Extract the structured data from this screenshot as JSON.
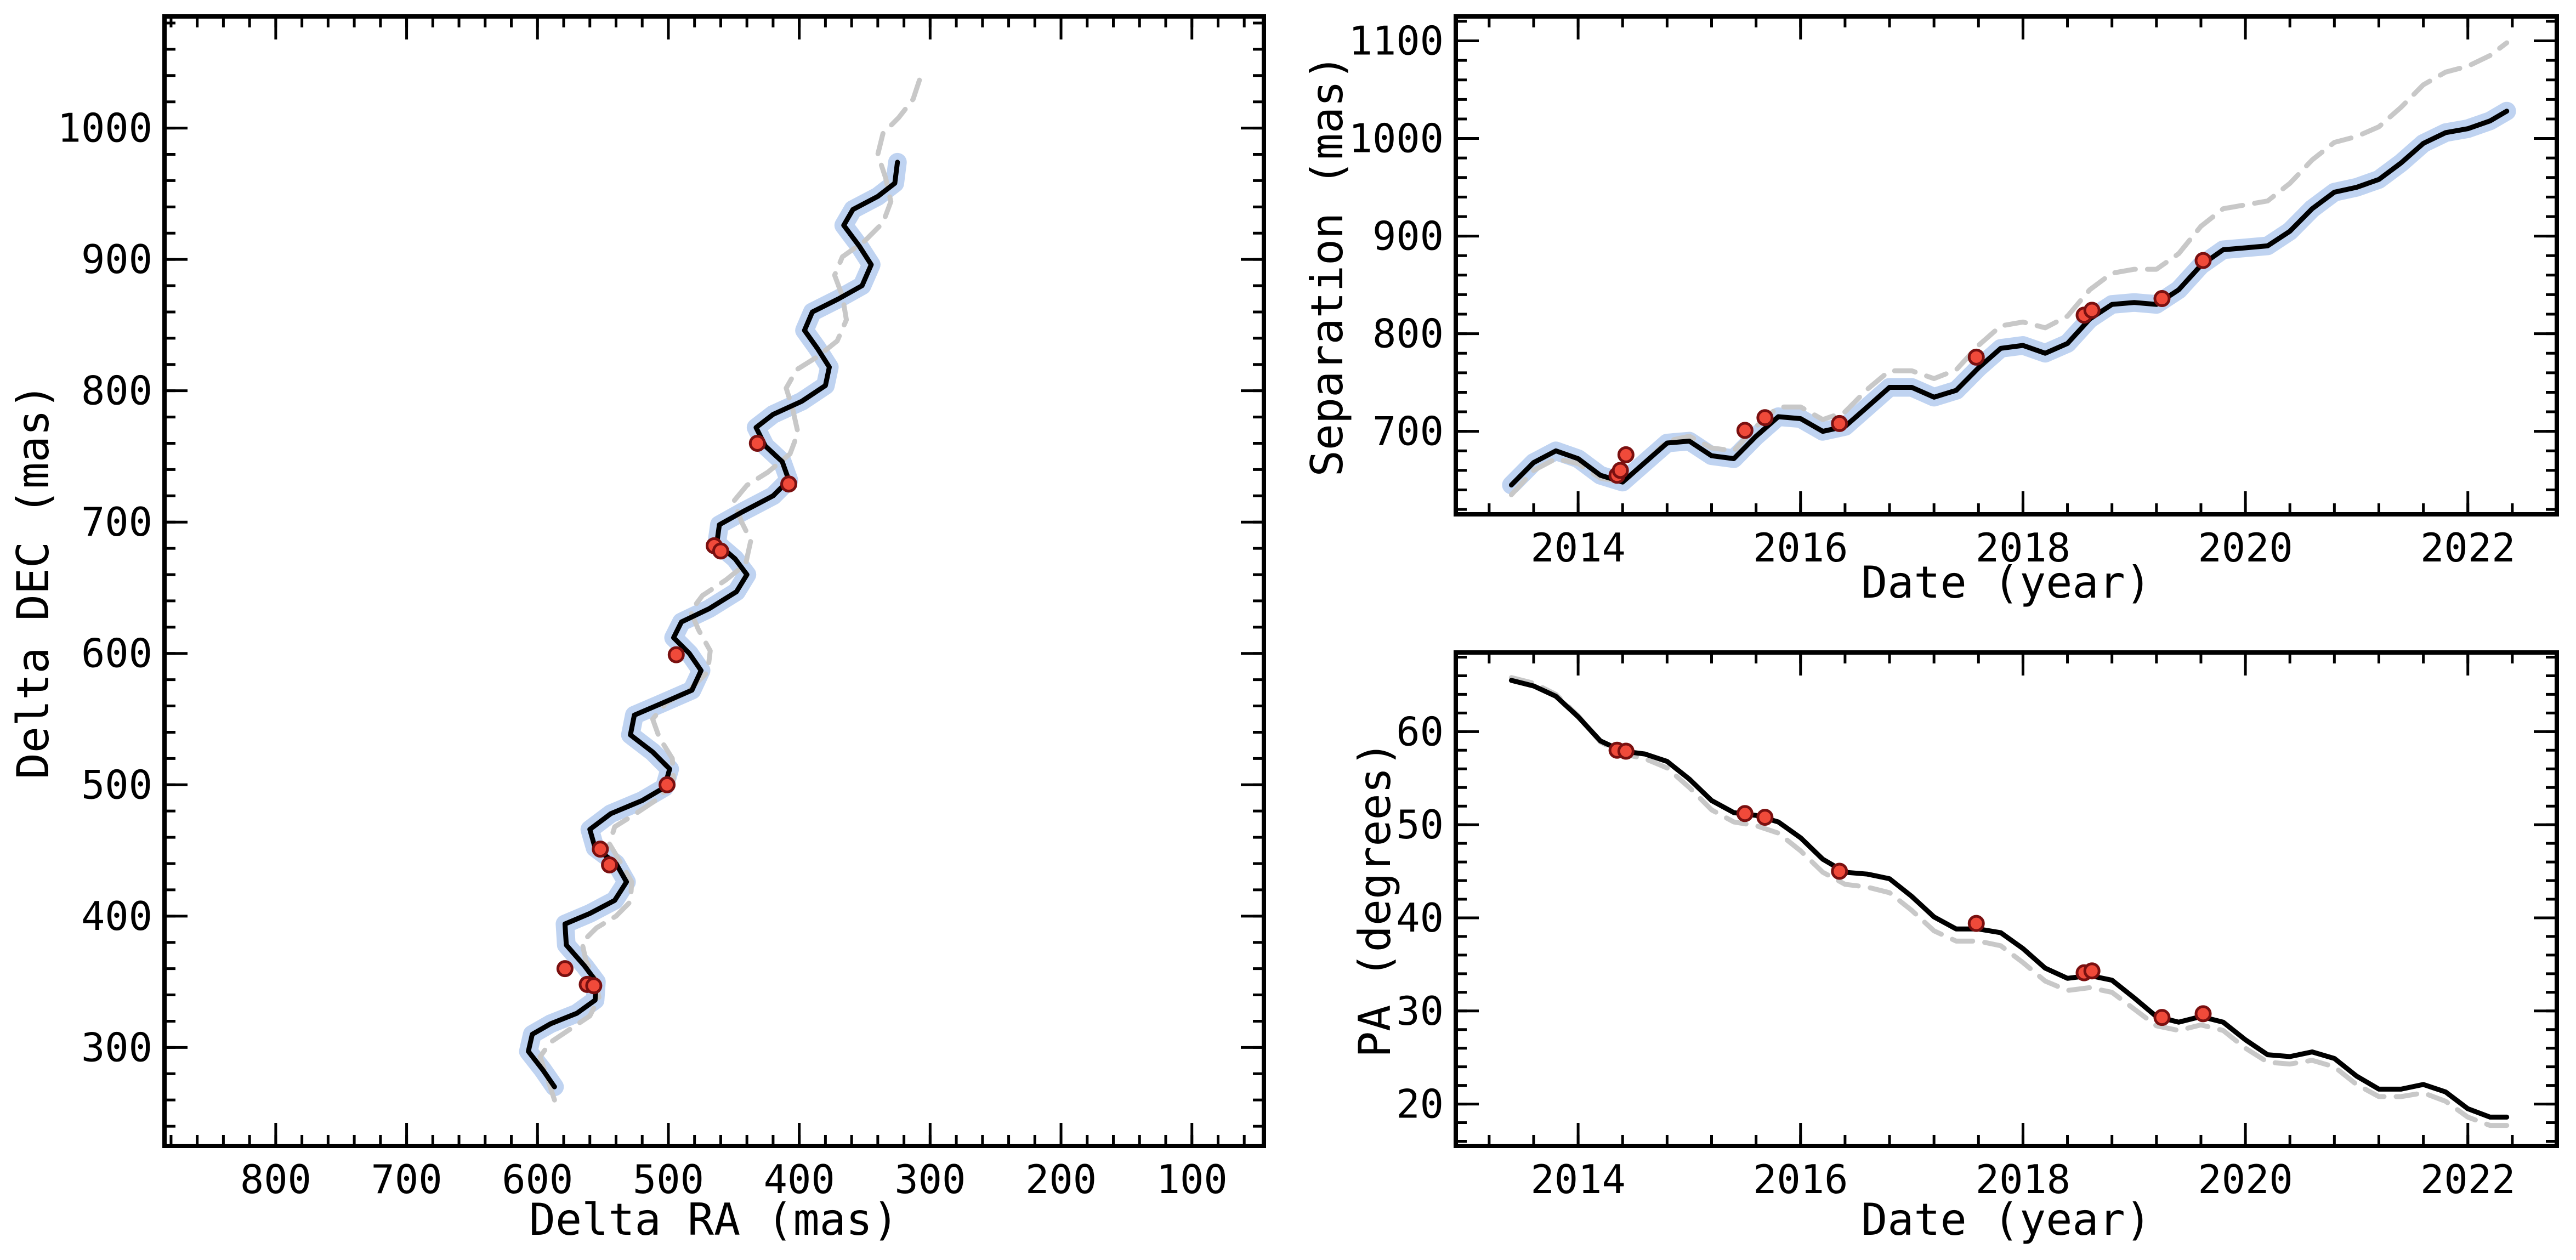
{
  "colors": {
    "model": "#000000",
    "band": "#a9c4ec",
    "alt_model": "#c8c8c8",
    "points_fill": "#f04a3a",
    "points_edge": "#7a1010"
  },
  "chart_data": [
    {
      "id": "sky",
      "type": "line",
      "xlabel": "Delta RA (mas)",
      "ylabel": "Delta DEC (mas)",
      "xlim": [
        885,
        45
      ],
      "ylim": [
        225,
        1085
      ],
      "x_inverted": true,
      "xticks": [
        800,
        700,
        600,
        500,
        400,
        300,
        200,
        100
      ],
      "yticks": [
        300,
        400,
        500,
        600,
        700,
        800,
        900,
        1000
      ],
      "grid": false,
      "observations": [
        {
          "x": 579,
          "y": 360
        },
        {
          "x": 562,
          "y": 348
        },
        {
          "x": 557,
          "y": 347
        },
        {
          "x": 552,
          "y": 451
        },
        {
          "x": 545,
          "y": 439
        },
        {
          "x": 501,
          "y": 500
        },
        {
          "x": 494,
          "y": 599
        },
        {
          "x": 465,
          "y": 682
        },
        {
          "x": 460,
          "y": 678
        },
        {
          "x": 432,
          "y": 760
        },
        {
          "x": 408,
          "y": 729
        }
      ],
      "model": [
        [
          587,
          270
        ],
        [
          596,
          283
        ],
        [
          607,
          297
        ],
        [
          604,
          310
        ],
        [
          590,
          318
        ],
        [
          570,
          326
        ],
        [
          556,
          336
        ],
        [
          555,
          350
        ],
        [
          564,
          362
        ],
        [
          578,
          378
        ],
        [
          579,
          394
        ],
        [
          560,
          402
        ],
        [
          541,
          412
        ],
        [
          532,
          426
        ],
        [
          540,
          440
        ],
        [
          556,
          452
        ],
        [
          560,
          466
        ],
        [
          544,
          478
        ],
        [
          520,
          488
        ],
        [
          503,
          498
        ],
        [
          499,
          512
        ],
        [
          512,
          525
        ],
        [
          529,
          538
        ],
        [
          526,
          553
        ],
        [
          505,
          562
        ],
        [
          482,
          572
        ],
        [
          475,
          587
        ],
        [
          484,
          600
        ],
        [
          496,
          612
        ],
        [
          490,
          624
        ],
        [
          469,
          634
        ],
        [
          448,
          647
        ],
        [
          440,
          660
        ],
        [
          449,
          672
        ],
        [
          463,
          684
        ],
        [
          461,
          698
        ],
        [
          443,
          708
        ],
        [
          420,
          720
        ],
        [
          408,
          732
        ],
        [
          413,
          746
        ],
        [
          426,
          758
        ],
        [
          433,
          772
        ],
        [
          420,
          782
        ],
        [
          398,
          792
        ],
        [
          380,
          804
        ],
        [
          377,
          818
        ],
        [
          386,
          832
        ],
        [
          396,
          846
        ],
        [
          390,
          860
        ],
        [
          370,
          870
        ],
        [
          352,
          880
        ],
        [
          345,
          896
        ],
        [
          354,
          910
        ],
        [
          366,
          926
        ],
        [
          359,
          938
        ],
        [
          340,
          948
        ],
        [
          327,
          958
        ],
        [
          325,
          974
        ]
      ],
      "alt_model": [
        [
          587,
          260
        ],
        [
          593,
          278
        ],
        [
          598,
          293
        ],
        [
          590,
          304
        ],
        [
          575,
          314
        ],
        [
          560,
          324
        ],
        [
          553,
          338
        ],
        [
          556,
          352
        ],
        [
          563,
          366
        ],
        [
          566,
          380
        ],
        [
          555,
          391
        ],
        [
          540,
          400
        ],
        [
          529,
          411
        ],
        [
          528,
          426
        ],
        [
          536,
          440
        ],
        [
          545,
          455
        ],
        [
          541,
          468
        ],
        [
          525,
          478
        ],
        [
          507,
          490
        ],
        [
          496,
          504
        ],
        [
          497,
          520
        ],
        [
          507,
          536
        ],
        [
          512,
          550
        ],
        [
          502,
          562
        ],
        [
          484,
          572
        ],
        [
          470,
          586
        ],
        [
          468,
          602
        ],
        [
          477,
          618
        ],
        [
          483,
          632
        ],
        [
          474,
          644
        ],
        [
          456,
          656
        ],
        [
          441,
          668
        ],
        [
          437,
          686
        ],
        [
          444,
          700
        ],
        [
          450,
          716
        ],
        [
          440,
          728
        ],
        [
          424,
          738
        ],
        [
          407,
          752
        ],
        [
          401,
          768
        ],
        [
          405,
          786
        ],
        [
          410,
          802
        ],
        [
          402,
          816
        ],
        [
          386,
          826
        ],
        [
          371,
          838
        ],
        [
          364,
          854
        ],
        [
          367,
          872
        ],
        [
          373,
          888
        ],
        [
          367,
          902
        ],
        [
          350,
          914
        ],
        [
          336,
          928
        ],
        [
          330,
          944
        ],
        [
          334,
          962
        ],
        [
          340,
          980
        ],
        [
          336,
          996
        ],
        [
          324,
          1008
        ],
        [
          313,
          1022
        ],
        [
          307,
          1040
        ]
      ]
    },
    {
      "id": "separation",
      "type": "line",
      "xlabel": "Date (year)",
      "ylabel": "Separation (mas)",
      "xlim": [
        2012.9,
        2022.8
      ],
      "ylim": [
        615,
        1125
      ],
      "xticks": [
        2014,
        2016,
        2018,
        2020,
        2022
      ],
      "yticks": [
        700,
        800,
        900,
        1000,
        1100
      ],
      "grid": false,
      "observations": [
        {
          "x": 2014.35,
          "y": 655
        },
        {
          "x": 2014.38,
          "y": 660
        },
        {
          "x": 2014.43,
          "y": 676
        },
        {
          "x": 2015.5,
          "y": 701
        },
        {
          "x": 2015.68,
          "y": 714
        },
        {
          "x": 2016.35,
          "y": 708
        },
        {
          "x": 2017.58,
          "y": 776
        },
        {
          "x": 2018.55,
          "y": 819
        },
        {
          "x": 2018.62,
          "y": 824
        },
        {
          "x": 2019.25,
          "y": 836
        },
        {
          "x": 2019.62,
          "y": 875
        }
      ],
      "model": [
        [
          2013.4,
          645
        ],
        [
          2013.6,
          668
        ],
        [
          2013.8,
          680
        ],
        [
          2014.0,
          672
        ],
        [
          2014.2,
          655
        ],
        [
          2014.4,
          648
        ],
        [
          2014.6,
          668
        ],
        [
          2014.8,
          688
        ],
        [
          2015.0,
          690
        ],
        [
          2015.2,
          675
        ],
        [
          2015.4,
          672
        ],
        [
          2015.6,
          695
        ],
        [
          2015.8,
          715
        ],
        [
          2016.0,
          713
        ],
        [
          2016.2,
          700
        ],
        [
          2016.4,
          705
        ],
        [
          2016.6,
          725
        ],
        [
          2016.8,
          745
        ],
        [
          2017.0,
          745
        ],
        [
          2017.2,
          735
        ],
        [
          2017.4,
          742
        ],
        [
          2017.6,
          765
        ],
        [
          2017.8,
          785
        ],
        [
          2018.0,
          788
        ],
        [
          2018.2,
          780
        ],
        [
          2018.4,
          790
        ],
        [
          2018.6,
          815
        ],
        [
          2018.8,
          830
        ],
        [
          2019.0,
          832
        ],
        [
          2019.2,
          830
        ],
        [
          2019.4,
          845
        ],
        [
          2019.6,
          870
        ],
        [
          2019.8,
          886
        ],
        [
          2020.0,
          888
        ],
        [
          2020.2,
          890
        ],
        [
          2020.4,
          905
        ],
        [
          2020.6,
          928
        ],
        [
          2020.8,
          945
        ],
        [
          2021.0,
          950
        ],
        [
          2021.2,
          958
        ],
        [
          2021.4,
          975
        ],
        [
          2021.6,
          995
        ],
        [
          2021.8,
          1006
        ],
        [
          2022.0,
          1010
        ],
        [
          2022.2,
          1018
        ],
        [
          2022.35,
          1028
        ]
      ],
      "alt_model": [
        [
          2013.4,
          635
        ],
        [
          2013.6,
          660
        ],
        [
          2013.8,
          672
        ],
        [
          2014.0,
          667
        ],
        [
          2014.2,
          652
        ],
        [
          2014.4,
          648
        ],
        [
          2014.6,
          668
        ],
        [
          2014.8,
          690
        ],
        [
          2015.0,
          695
        ],
        [
          2015.2,
          683
        ],
        [
          2015.4,
          680
        ],
        [
          2015.6,
          705
        ],
        [
          2015.8,
          725
        ],
        [
          2016.0,
          725
        ],
        [
          2016.2,
          712
        ],
        [
          2016.4,
          720
        ],
        [
          2016.6,
          743
        ],
        [
          2016.8,
          762
        ],
        [
          2017.0,
          762
        ],
        [
          2017.2,
          754
        ],
        [
          2017.4,
          763
        ],
        [
          2017.6,
          788
        ],
        [
          2017.8,
          808
        ],
        [
          2018.0,
          812
        ],
        [
          2018.2,
          806
        ],
        [
          2018.4,
          818
        ],
        [
          2018.6,
          845
        ],
        [
          2018.8,
          862
        ],
        [
          2019.0,
          866
        ],
        [
          2019.2,
          866
        ],
        [
          2019.4,
          882
        ],
        [
          2019.6,
          910
        ],
        [
          2019.8,
          928
        ],
        [
          2020.0,
          932
        ],
        [
          2020.2,
          936
        ],
        [
          2020.4,
          954
        ],
        [
          2020.6,
          978
        ],
        [
          2020.8,
          996
        ],
        [
          2021.0,
          1002
        ],
        [
          2021.2,
          1012
        ],
        [
          2021.4,
          1032
        ],
        [
          2021.6,
          1055
        ],
        [
          2021.8,
          1068
        ],
        [
          2022.0,
          1074
        ],
        [
          2022.2,
          1085
        ],
        [
          2022.35,
          1098
        ]
      ]
    },
    {
      "id": "position_angle",
      "type": "line",
      "xlabel": "Date (year)",
      "ylabel": "PA (degrees)",
      "xlim": [
        2012.9,
        2022.8
      ],
      "ylim": [
        15.5,
        68.5
      ],
      "xticks": [
        2014,
        2016,
        2018,
        2020,
        2022
      ],
      "yticks": [
        20,
        30,
        40,
        50,
        60
      ],
      "grid": false,
      "observations": [
        {
          "x": 2014.35,
          "y": 58
        },
        {
          "x": 2014.43,
          "y": 57.9
        },
        {
          "x": 2015.5,
          "y": 51.2
        },
        {
          "x": 2015.68,
          "y": 50.8
        },
        {
          "x": 2016.35,
          "y": 45
        },
        {
          "x": 2017.58,
          "y": 39.4
        },
        {
          "x": 2018.55,
          "y": 34.1
        },
        {
          "x": 2018.62,
          "y": 34.3
        },
        {
          "x": 2019.25,
          "y": 29.3
        },
        {
          "x": 2019.62,
          "y": 29.7
        }
      ],
      "model": [
        [
          2013.4,
          65.5
        ],
        [
          2013.6,
          64.9
        ],
        [
          2013.8,
          63.8
        ],
        [
          2014.0,
          61.6
        ],
        [
          2014.2,
          59.0
        ],
        [
          2014.4,
          57.9
        ],
        [
          2014.6,
          57.6
        ],
        [
          2014.8,
          56.8
        ],
        [
          2015.0,
          54.9
        ],
        [
          2015.2,
          52.6
        ],
        [
          2015.4,
          51.3
        ],
        [
          2015.6,
          51.0
        ],
        [
          2015.8,
          50.3
        ],
        [
          2016.0,
          48.6
        ],
        [
          2016.2,
          46.3
        ],
        [
          2016.4,
          44.9
        ],
        [
          2016.6,
          44.7
        ],
        [
          2016.8,
          44.2
        ],
        [
          2017.0,
          42.3
        ],
        [
          2017.2,
          40.1
        ],
        [
          2017.4,
          38.8
        ],
        [
          2017.6,
          38.8
        ],
        [
          2017.8,
          38.4
        ],
        [
          2018.0,
          36.7
        ],
        [
          2018.2,
          34.6
        ],
        [
          2018.4,
          33.5
        ],
        [
          2018.6,
          33.8
        ],
        [
          2018.8,
          33.3
        ],
        [
          2019.0,
          31.4
        ],
        [
          2019.2,
          29.4
        ],
        [
          2019.4,
          28.8
        ],
        [
          2019.6,
          29.4
        ],
        [
          2019.8,
          28.8
        ],
        [
          2020.0,
          26.9
        ],
        [
          2020.2,
          25.3
        ],
        [
          2020.4,
          25.1
        ],
        [
          2020.6,
          25.6
        ],
        [
          2020.8,
          24.9
        ],
        [
          2021.0,
          23.0
        ],
        [
          2021.2,
          21.6
        ],
        [
          2021.4,
          21.6
        ],
        [
          2021.6,
          22.1
        ],
        [
          2021.8,
          21.3
        ],
        [
          2022.0,
          19.5
        ],
        [
          2022.2,
          18.6
        ],
        [
          2022.35,
          18.6
        ]
      ],
      "alt_model": [
        [
          2013.4,
          65.8
        ],
        [
          2013.6,
          65.2
        ],
        [
          2013.8,
          64.0
        ],
        [
          2014.0,
          61.7
        ],
        [
          2014.2,
          58.9
        ],
        [
          2014.4,
          57.6
        ],
        [
          2014.6,
          57.1
        ],
        [
          2014.8,
          56.1
        ],
        [
          2015.0,
          54.0
        ],
        [
          2015.2,
          51.6
        ],
        [
          2015.4,
          50.3
        ],
        [
          2015.6,
          49.9
        ],
        [
          2015.8,
          49.1
        ],
        [
          2016.0,
          47.2
        ],
        [
          2016.2,
          44.9
        ],
        [
          2016.4,
          43.6
        ],
        [
          2016.6,
          43.3
        ],
        [
          2016.8,
          42.7
        ],
        [
          2017.0,
          40.8
        ],
        [
          2017.2,
          38.6
        ],
        [
          2017.4,
          37.5
        ],
        [
          2017.6,
          37.5
        ],
        [
          2017.8,
          37.0
        ],
        [
          2018.0,
          35.2
        ],
        [
          2018.2,
          33.2
        ],
        [
          2018.4,
          32.2
        ],
        [
          2018.6,
          32.5
        ],
        [
          2018.8,
          32.0
        ],
        [
          2019.0,
          30.2
        ],
        [
          2019.2,
          28.4
        ],
        [
          2019.4,
          27.9
        ],
        [
          2019.6,
          28.5
        ],
        [
          2019.8,
          27.9
        ],
        [
          2020.0,
          26.0
        ],
        [
          2020.2,
          24.5
        ],
        [
          2020.4,
          24.3
        ],
        [
          2020.6,
          24.7
        ],
        [
          2020.8,
          24.0
        ],
        [
          2021.0,
          22.1
        ],
        [
          2021.2,
          20.8
        ],
        [
          2021.4,
          20.8
        ],
        [
          2021.6,
          21.2
        ],
        [
          2021.8,
          20.3
        ],
        [
          2022.0,
          18.6
        ],
        [
          2022.2,
          17.7
        ],
        [
          2022.35,
          17.7
        ]
      ]
    }
  ]
}
